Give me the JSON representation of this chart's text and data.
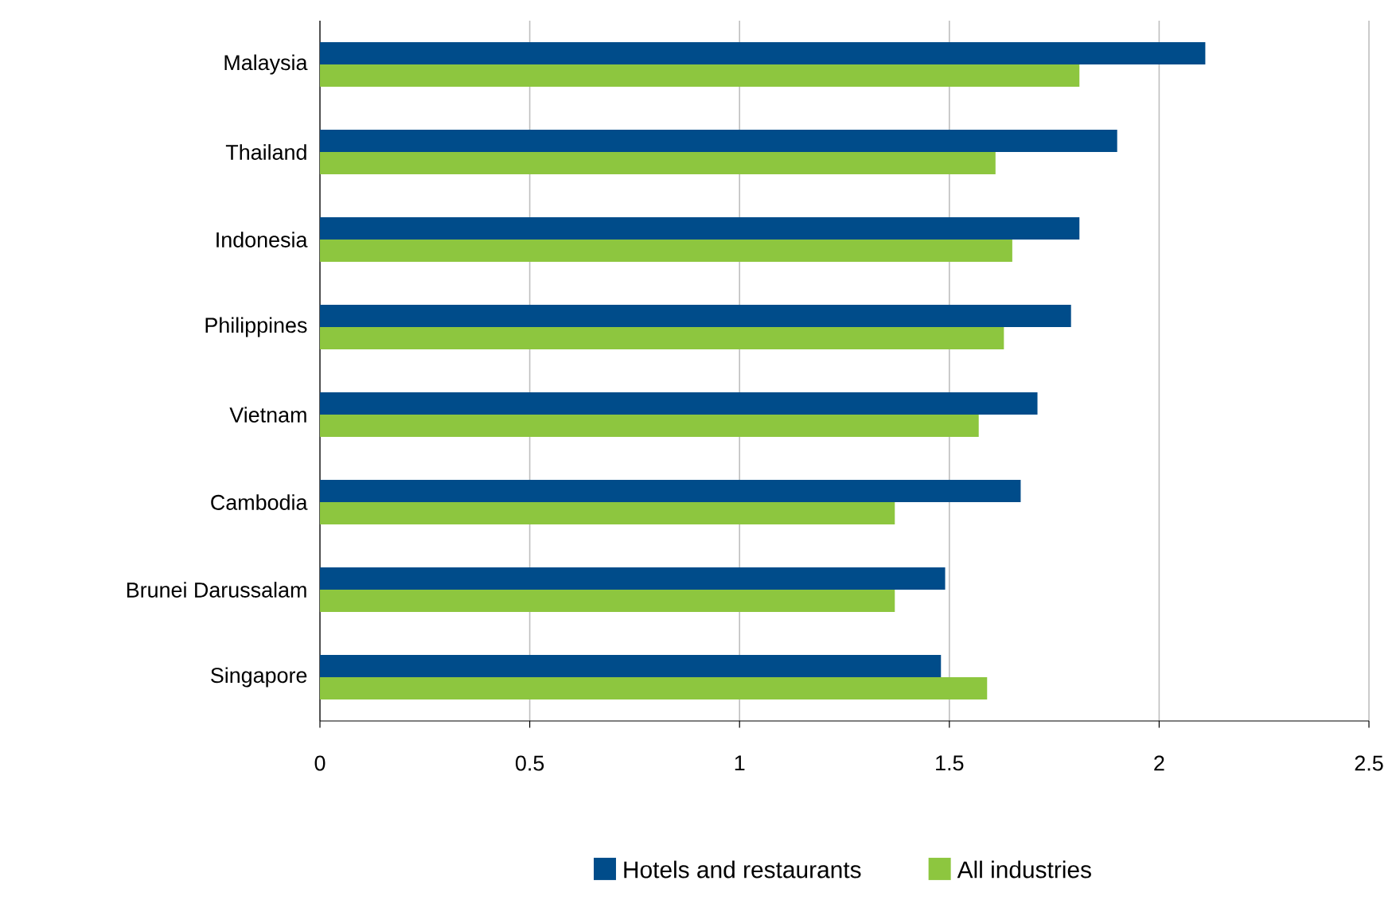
{
  "chart_data": {
    "type": "bar",
    "orientation": "horizontal",
    "categories": [
      "Malaysia",
      "Thailand",
      "Indonesia",
      "Philippines",
      "Vietnam",
      "Cambodia",
      "Brunei Darussalam",
      "Singapore"
    ],
    "series": [
      {
        "name": "Hotels and restaurants",
        "color": "#004c8a",
        "values": [
          2.11,
          1.9,
          1.81,
          1.79,
          1.71,
          1.67,
          1.49,
          1.48
        ]
      },
      {
        "name": "All industries",
        "color": "#8dc63f",
        "values": [
          1.81,
          1.61,
          1.65,
          1.63,
          1.57,
          1.37,
          1.37,
          1.59
        ]
      }
    ],
    "xlim": [
      0,
      2.5
    ],
    "xticks": [
      0,
      0.5,
      1,
      1.5,
      2,
      2.5
    ],
    "grid": "x",
    "legend": "bottom"
  }
}
